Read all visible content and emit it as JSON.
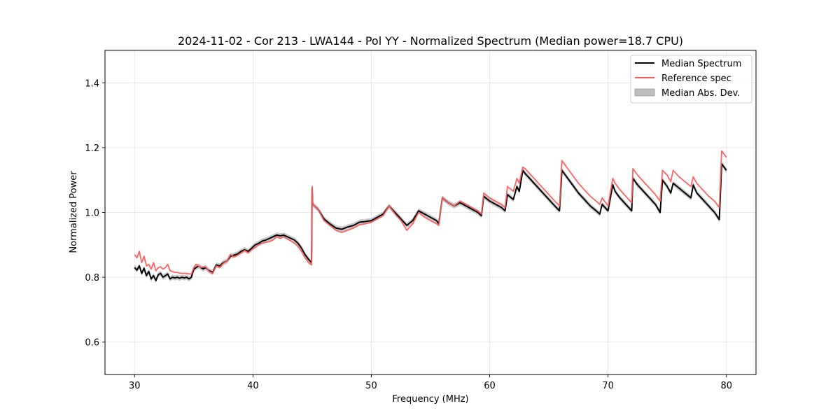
{
  "chart_data": {
    "type": "line",
    "title": "2024-11-02 - Cor 213 - LWA144 - Pol YY - Normalized Spectrum (Median power=18.7 CPU)",
    "xlabel": "Frequency (MHz)",
    "ylabel": "Normalized Power",
    "xlim": [
      27.5,
      82.5
    ],
    "ylim": [
      0.5,
      1.5
    ],
    "xticks": [
      30,
      40,
      50,
      60,
      70,
      80
    ],
    "xtick_labels": [
      "30",
      "40",
      "50",
      "60",
      "70",
      "80"
    ],
    "yticks": [
      0.6,
      0.8,
      1.0,
      1.2,
      1.4
    ],
    "ytick_labels": [
      "0.6",
      "0.8",
      "1.0",
      "1.2",
      "1.4"
    ],
    "grid": true,
    "legend_position": "top-right",
    "colors": {
      "median": "#000000",
      "reference": "#ff5a5a",
      "mad": "#bdbdbd"
    },
    "series": [
      {
        "name": "Median Spectrum",
        "x": [
          30.0,
          30.2,
          30.4,
          30.6,
          30.8,
          31.0,
          31.2,
          31.4,
          31.6,
          31.8,
          32.0,
          32.2,
          32.4,
          32.6,
          32.8,
          33.0,
          33.2,
          33.4,
          33.6,
          33.8,
          34.0,
          34.2,
          34.4,
          34.6,
          34.8,
          35.0,
          35.2,
          35.4,
          35.6,
          35.8,
          36.0,
          36.3,
          36.6,
          36.9,
          37.2,
          37.5,
          37.8,
          38.1,
          38.4,
          38.7,
          39.0,
          39.3,
          39.6,
          39.9,
          40.2,
          40.5,
          40.8,
          41.1,
          41.4,
          41.7,
          42.0,
          42.3,
          42.6,
          42.9,
          43.2,
          43.5,
          43.8,
          44.1,
          44.4,
          44.7,
          44.95,
          45.0,
          45.05,
          45.5,
          46.0,
          46.5,
          47.0,
          47.5,
          48.0,
          48.5,
          49.0,
          49.5,
          50.0,
          50.5,
          51.0,
          51.5,
          52.0,
          52.5,
          53.0,
          53.5,
          54.0,
          54.5,
          55.0,
          55.5,
          55.7,
          56.0,
          56.5,
          57.0,
          57.5,
          58.0,
          58.5,
          59.0,
          59.3,
          59.5,
          60.0,
          60.5,
          61.0,
          61.3,
          61.5,
          62.0,
          62.3,
          62.5,
          62.8,
          63.0,
          63.5,
          64.0,
          64.5,
          65.0,
          65.5,
          65.9,
          66.1,
          66.5,
          67.0,
          67.5,
          68.0,
          68.5,
          69.0,
          69.3,
          69.5,
          70.0,
          70.4,
          70.6,
          71.0,
          71.5,
          72.0,
          72.1,
          72.5,
          73.0,
          73.5,
          74.0,
          74.4,
          74.6,
          75.0,
          75.3,
          75.5,
          76.0,
          76.5,
          77.0,
          77.2,
          77.5,
          78.0,
          78.5,
          79.0,
          79.4,
          79.6,
          79.8,
          80.0
        ],
        "values": [
          0.83,
          0.822,
          0.835,
          0.812,
          0.828,
          0.805,
          0.818,
          0.795,
          0.805,
          0.79,
          0.808,
          0.812,
          0.8,
          0.805,
          0.81,
          0.795,
          0.8,
          0.798,
          0.8,
          0.797,
          0.8,
          0.798,
          0.8,
          0.795,
          0.8,
          0.825,
          0.83,
          0.835,
          0.83,
          0.826,
          0.83,
          0.82,
          0.815,
          0.838,
          0.835,
          0.845,
          0.85,
          0.865,
          0.868,
          0.872,
          0.88,
          0.885,
          0.88,
          0.89,
          0.9,
          0.905,
          0.912,
          0.915,
          0.92,
          0.925,
          0.93,
          0.928,
          0.93,
          0.925,
          0.92,
          0.915,
          0.905,
          0.89,
          0.87,
          0.855,
          0.845,
          1.075,
          1.025,
          1.01,
          0.98,
          0.965,
          0.952,
          0.948,
          0.955,
          0.96,
          0.97,
          0.972,
          0.975,
          0.985,
          0.995,
          1.02,
          1.0,
          0.98,
          0.96,
          0.975,
          1.005,
          0.995,
          0.985,
          0.975,
          0.965,
          1.045,
          1.03,
          1.02,
          1.03,
          1.02,
          1.01,
          1.0,
          0.99,
          1.05,
          1.035,
          1.025,
          1.015,
          1.005,
          1.055,
          1.04,
          1.08,
          1.065,
          1.13,
          1.12,
          1.1,
          1.08,
          1.06,
          1.04,
          1.02,
          1.005,
          1.13,
          1.11,
          1.085,
          1.06,
          1.04,
          1.02,
          1.005,
          0.995,
          1.025,
          1.005,
          1.085,
          1.065,
          1.045,
          1.025,
          1.005,
          1.105,
          1.085,
          1.065,
          1.045,
          1.025,
          1.0,
          1.1,
          1.08,
          1.06,
          1.09,
          1.075,
          1.06,
          1.045,
          1.085,
          1.06,
          1.04,
          1.02,
          1.0,
          0.978,
          1.15,
          1.14,
          1.13
        ]
      },
      {
        "name": "Reference spec",
        "x": [
          30.0,
          30.2,
          30.4,
          30.6,
          30.8,
          31.0,
          31.2,
          31.4,
          31.6,
          31.8,
          32.0,
          32.2,
          32.4,
          32.6,
          32.8,
          33.0,
          33.2,
          33.4,
          33.6,
          33.8,
          34.0,
          34.2,
          34.4,
          34.6,
          34.8,
          35.0,
          35.2,
          35.4,
          35.6,
          35.8,
          36.0,
          36.3,
          36.6,
          36.9,
          37.2,
          37.5,
          37.8,
          38.1,
          38.4,
          38.7,
          39.0,
          39.3,
          39.6,
          39.9,
          40.2,
          40.5,
          40.8,
          41.1,
          41.4,
          41.7,
          42.0,
          42.3,
          42.6,
          42.9,
          43.2,
          43.5,
          43.8,
          44.1,
          44.4,
          44.7,
          44.95,
          45.0,
          45.05,
          45.5,
          46.0,
          46.5,
          47.0,
          47.5,
          48.0,
          48.5,
          49.0,
          49.5,
          50.0,
          50.5,
          51.0,
          51.5,
          52.0,
          52.5,
          53.0,
          53.5,
          54.0,
          54.5,
          55.0,
          55.5,
          55.7,
          56.0,
          56.5,
          57.0,
          57.5,
          58.0,
          58.5,
          59.0,
          59.3,
          59.5,
          60.0,
          60.5,
          61.0,
          61.3,
          61.5,
          62.0,
          62.3,
          62.5,
          62.8,
          63.0,
          63.5,
          64.0,
          64.5,
          65.0,
          65.5,
          65.9,
          66.1,
          66.5,
          67.0,
          67.5,
          68.0,
          68.5,
          69.0,
          69.3,
          69.5,
          70.0,
          70.4,
          70.6,
          71.0,
          71.5,
          72.0,
          72.1,
          72.5,
          73.0,
          73.5,
          74.0,
          74.4,
          74.6,
          75.0,
          75.3,
          75.5,
          76.0,
          76.5,
          77.0,
          77.2,
          77.5,
          78.0,
          78.5,
          79.0,
          79.4,
          79.6,
          79.8,
          80.0
        ],
        "values": [
          0.87,
          0.86,
          0.88,
          0.845,
          0.865,
          0.835,
          0.84,
          0.825,
          0.845,
          0.82,
          0.83,
          0.832,
          0.825,
          0.83,
          0.84,
          0.82,
          0.818,
          0.815,
          0.815,
          0.813,
          0.812,
          0.812,
          0.812,
          0.81,
          0.81,
          0.83,
          0.84,
          0.835,
          0.83,
          0.832,
          0.832,
          0.818,
          0.812,
          0.835,
          0.83,
          0.843,
          0.85,
          0.87,
          0.863,
          0.868,
          0.875,
          0.883,
          0.875,
          0.885,
          0.892,
          0.9,
          0.905,
          0.908,
          0.91,
          0.915,
          0.925,
          0.92,
          0.925,
          0.918,
          0.912,
          0.905,
          0.895,
          0.88,
          0.86,
          0.845,
          0.838,
          1.08,
          1.025,
          1.01,
          0.975,
          0.96,
          0.945,
          0.938,
          0.945,
          0.952,
          0.962,
          0.965,
          0.97,
          0.98,
          0.99,
          1.02,
          0.995,
          0.975,
          0.945,
          0.965,
          1.0,
          0.985,
          0.975,
          0.965,
          0.96,
          1.045,
          1.03,
          1.02,
          1.035,
          1.025,
          1.015,
          1.005,
          0.995,
          1.06,
          1.045,
          1.035,
          1.025,
          1.015,
          1.08,
          1.065,
          1.105,
          1.09,
          1.14,
          1.135,
          1.115,
          1.095,
          1.075,
          1.055,
          1.035,
          1.02,
          1.16,
          1.14,
          1.115,
          1.09,
          1.07,
          1.05,
          1.035,
          1.025,
          1.045,
          1.02,
          1.105,
          1.09,
          1.07,
          1.05,
          1.03,
          1.135,
          1.115,
          1.095,
          1.075,
          1.055,
          1.035,
          1.13,
          1.115,
          1.095,
          1.13,
          1.11,
          1.095,
          1.08,
          1.11,
          1.09,
          1.07,
          1.05,
          1.035,
          1.015,
          1.19,
          1.18,
          1.17
        ]
      }
    ],
    "mad_band": {
      "name": "Median Abs. Dev.",
      "width": 0.008
    }
  }
}
